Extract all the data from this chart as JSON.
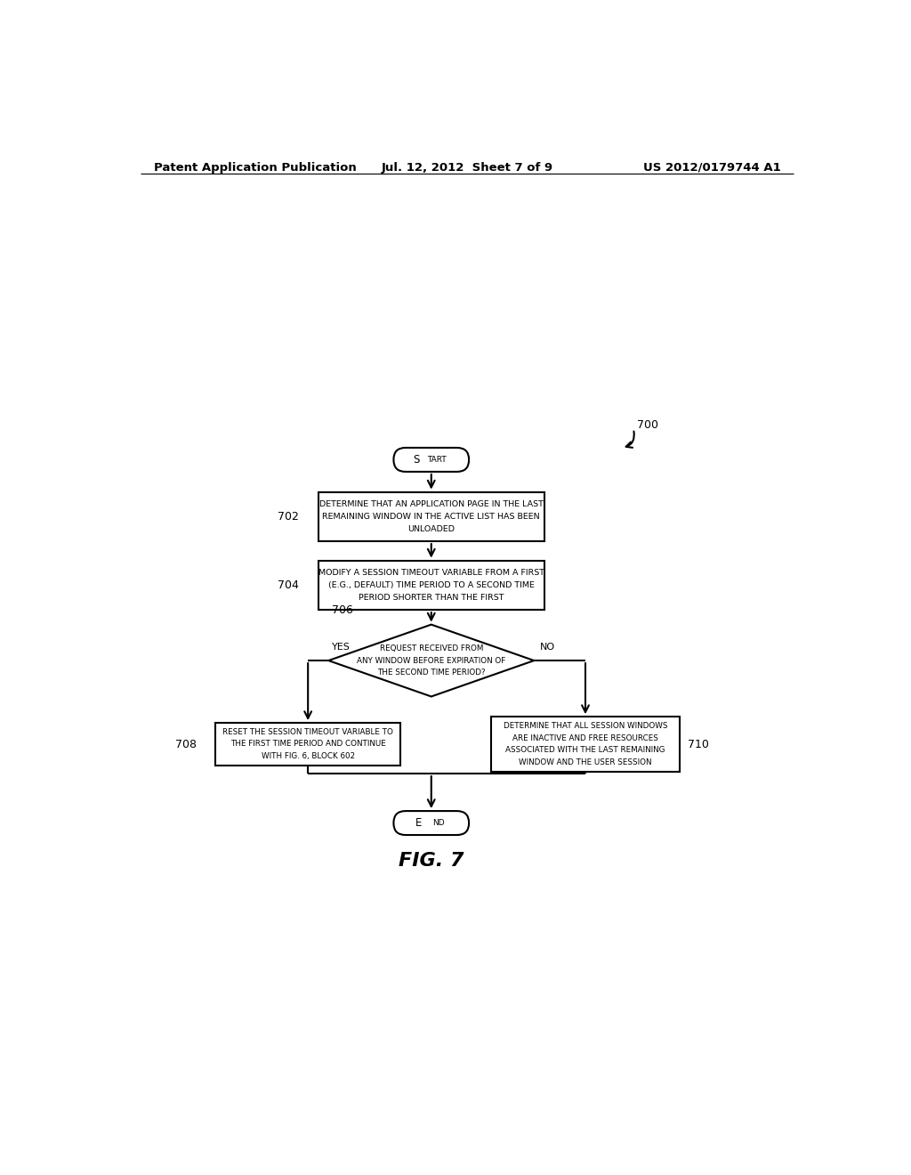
{
  "header_left": "Patent Application Publication",
  "header_mid": "Jul. 12, 2012  Sheet 7 of 9",
  "header_right": "US 2012/0179744 A1",
  "fig_label": "FIG. 7",
  "ref_700": "700",
  "ref_702": "702",
  "ref_704": "704",
  "ref_706": "706",
  "ref_708": "708",
  "ref_710": "710",
  "start_text": "START",
  "end_text": "END",
  "box702_text": "Determine that an application page in the last\nremaining window in the active list has been\nunloaded",
  "box704_text": "Modify a session timeout variable from a first\n(e.g., default) time period to a second time\nperiod shorter than the first",
  "diamond706_text": "Request received from\nany window before expiration of\nthe second time period?",
  "yes_label": "Yes",
  "no_label": "No",
  "box708_text": "Reset the session timeout variable to\nthe first time period and continue\nwith Fig. 6, block 602",
  "box710_text": "Determine that all session windows\nare inactive and free resources\nassociated with the last remaining\nwindow and the user session",
  "bg_color": "#ffffff",
  "line_color": "#000000",
  "text_color": "#000000"
}
